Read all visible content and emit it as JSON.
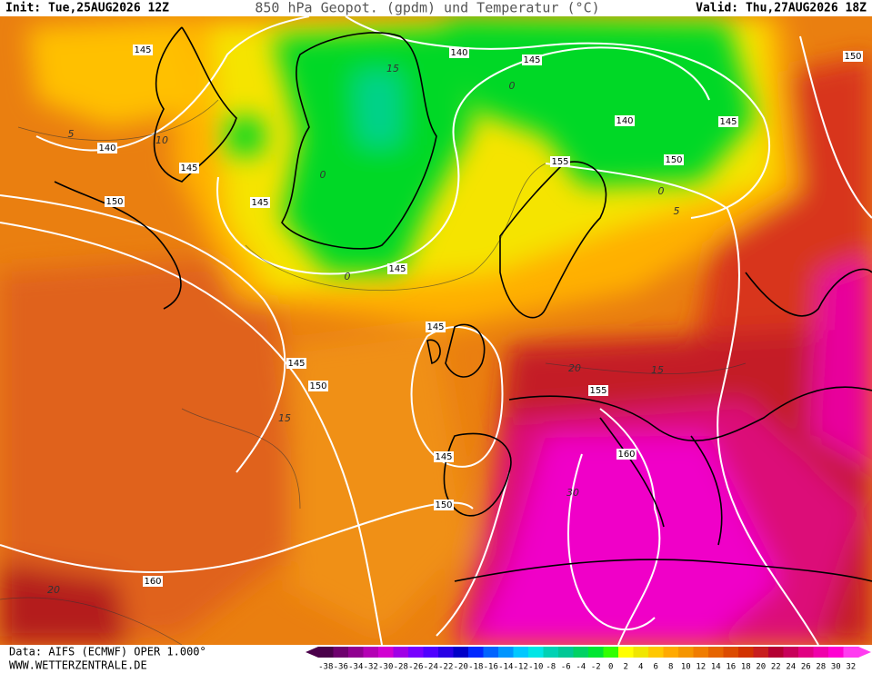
{
  "header": {
    "init": "Init: Tue,25AUG2026 12Z",
    "title": "850 hPa Geopot. (gpdm) und Temperatur (°C)",
    "valid": "Valid: Thu,27AUG2026 18Z"
  },
  "footer": {
    "source": "Data: AIFS (ECMWF) OPER 1.000°",
    "website": "WWW.WETTERZENTRALE.DE"
  },
  "color_scale": {
    "labels": [
      -38,
      -36,
      -34,
      -32,
      -30,
      -28,
      -26,
      -24,
      -22,
      -20,
      -18,
      -16,
      -14,
      -12,
      -10,
      -8,
      -6,
      -4,
      -2,
      0,
      2,
      4,
      6,
      8,
      10,
      12,
      14,
      16,
      18,
      20,
      22,
      24,
      26,
      28,
      30,
      32
    ],
    "colors": [
      "#4a004a",
      "#6e006e",
      "#900090",
      "#b400b4",
      "#d200d2",
      "#a000e6",
      "#7800ff",
      "#5000ff",
      "#2800e6",
      "#0000c8",
      "#0028ff",
      "#0064ff",
      "#0096ff",
      "#00c8ff",
      "#00e6e6",
      "#00d2b4",
      "#00c896",
      "#00d264",
      "#00e632",
      "#32ff00",
      "#ffff00",
      "#f0e600",
      "#ffc800",
      "#ffaa00",
      "#f59600",
      "#f07d00",
      "#e66400",
      "#dc4b00",
      "#d23200",
      "#c81e1e",
      "#b40032",
      "#c8005a",
      "#e10082",
      "#f000aa",
      "#ff00d2",
      "#ff3cf0"
    ]
  },
  "geopotential_labels": [
    145,
    140,
    145,
    150,
    145,
    140,
    145,
    140,
    145,
    150,
    155,
    150,
    145,
    145,
    145,
    150,
    155,
    160,
    145,
    150,
    160
  ],
  "isotherm_labels": [
    15,
    5,
    10,
    0,
    0,
    0,
    5,
    0,
    20,
    15,
    15,
    30,
    20
  ]
}
